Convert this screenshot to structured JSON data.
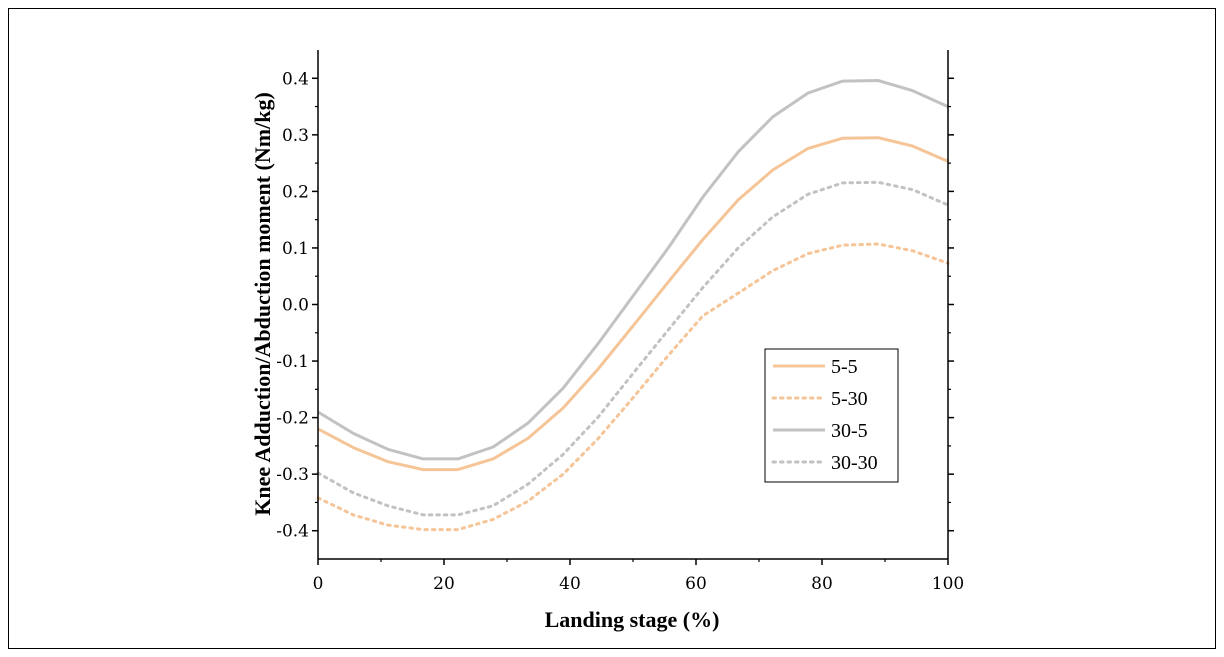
{
  "chart_data": {
    "type": "line",
    "title": "",
    "xlabel": "Landing stage (%)",
    "ylabel": "Knee Adduction/Abduction moment (Nm/kg)",
    "xlim": [
      0,
      100
    ],
    "ylim": [
      -0.45,
      0.45
    ],
    "xticks": [
      0,
      20,
      40,
      60,
      80,
      100
    ],
    "xtick_labels": [
      "0",
      "20",
      "40",
      "60",
      "80",
      "100"
    ],
    "yticks": [
      -0.4,
      -0.3,
      -0.2,
      -0.1,
      0.0,
      0.1,
      0.2,
      0.3,
      0.4
    ],
    "ytick_labels": [
      "-0.4",
      "-0.3",
      "-0.2",
      "-0.1",
      "0.0",
      "0.1",
      "0.2",
      "0.3",
      "0.4"
    ],
    "grid": false,
    "legend_position": "bottom-right",
    "x": [
      0,
      5.6,
      11.1,
      16.7,
      22.2,
      27.8,
      33.3,
      38.9,
      44.4,
      50,
      55.6,
      61.1,
      66.7,
      72.2,
      77.8,
      83.3,
      88.9,
      94.4,
      100
    ],
    "series": [
      {
        "name": "5-5",
        "color": "#f5c497",
        "dash": "solid",
        "values": [
          -0.22,
          -0.253,
          -0.278,
          -0.292,
          -0.292,
          -0.273,
          -0.237,
          -0.183,
          -0.115,
          -0.038,
          0.04,
          0.115,
          0.185,
          0.238,
          0.276,
          0.294,
          0.295,
          0.28,
          0.253
        ]
      },
      {
        "name": "5-30",
        "color": "#f5c497",
        "dash": "dotted",
        "values": [
          -0.342,
          -0.372,
          -0.39,
          -0.398,
          -0.398,
          -0.38,
          -0.348,
          -0.3,
          -0.238,
          -0.165,
          -0.09,
          -0.02,
          0.02,
          0.06,
          0.09,
          0.105,
          0.107,
          0.095,
          0.073
        ]
      },
      {
        "name": "30-5",
        "color": "#c2c2c2",
        "dash": "solid",
        "values": [
          -0.19,
          -0.228,
          -0.256,
          -0.273,
          -0.273,
          -0.252,
          -0.21,
          -0.148,
          -0.07,
          0.015,
          0.1,
          0.19,
          0.27,
          0.332,
          0.374,
          0.395,
          0.396,
          0.378,
          0.35
        ]
      },
      {
        "name": "30-30",
        "color": "#c2c2c2",
        "dash": "dotted",
        "values": [
          -0.298,
          -0.333,
          -0.356,
          -0.372,
          -0.372,
          -0.356,
          -0.318,
          -0.265,
          -0.2,
          -0.122,
          -0.045,
          0.03,
          0.1,
          0.155,
          0.195,
          0.215,
          0.216,
          0.203,
          0.176
        ]
      }
    ]
  }
}
